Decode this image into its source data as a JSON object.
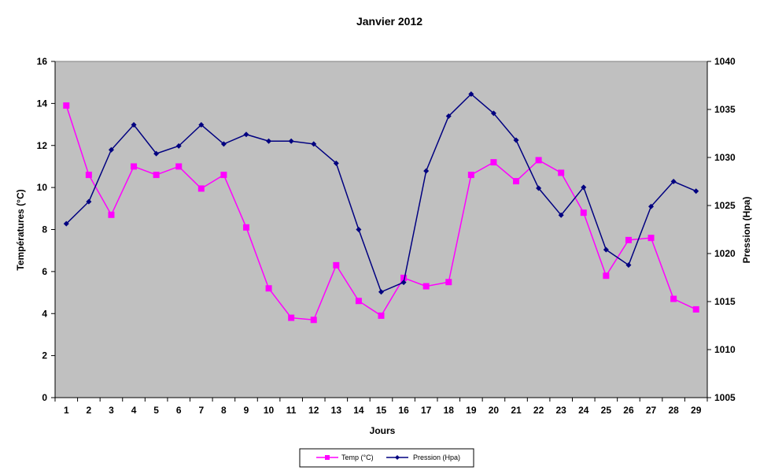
{
  "chart_data": {
    "type": "line",
    "title": "Janvier 2012",
    "xlabel": "Jours",
    "ylabel_left": "Températures (°C)",
    "ylabel_right": "Pression (Hpa)",
    "x": [
      1,
      2,
      3,
      4,
      5,
      6,
      7,
      8,
      9,
      10,
      11,
      12,
      13,
      14,
      15,
      16,
      17,
      18,
      19,
      20,
      21,
      22,
      23,
      24,
      25,
      26,
      27,
      28,
      29
    ],
    "ylim_left": [
      0,
      16
    ],
    "yticks_left": [
      0,
      2,
      4,
      6,
      8,
      10,
      12,
      14,
      16
    ],
    "ylim_right": [
      1005,
      1040
    ],
    "yticks_right": [
      1005,
      1010,
      1015,
      1020,
      1025,
      1030,
      1035,
      1040
    ],
    "grid": false,
    "legend_position": "bottom",
    "plot_background": "#c0c0c0",
    "series": [
      {
        "name": "Temp (°C)",
        "axis": "left",
        "color": "#ff00ff",
        "marker": "square",
        "values": [
          13.9,
          10.6,
          8.7,
          11.0,
          10.6,
          11.0,
          9.95,
          10.6,
          8.1,
          5.2,
          3.8,
          3.7,
          6.3,
          4.6,
          3.9,
          5.7,
          5.3,
          5.5,
          10.6,
          11.2,
          10.3,
          11.3,
          10.7,
          8.8,
          5.8,
          7.5,
          7.6,
          4.7,
          4.2
        ]
      },
      {
        "name": "Pression (Hpa)",
        "axis": "right",
        "color": "#000080",
        "marker": "diamond",
        "values": [
          1023.1,
          1025.4,
          1030.8,
          1033.4,
          1030.4,
          1031.2,
          1033.4,
          1031.4,
          1032.4,
          1031.7,
          1031.7,
          1031.4,
          1029.4,
          1022.5,
          1016.0,
          1017.0,
          1028.6,
          1034.3,
          1036.6,
          1034.6,
          1031.8,
          1026.8,
          1024.0,
          1026.9,
          1020.4,
          1018.8,
          1024.9,
          1027.5,
          1026.5
        ]
      }
    ]
  }
}
